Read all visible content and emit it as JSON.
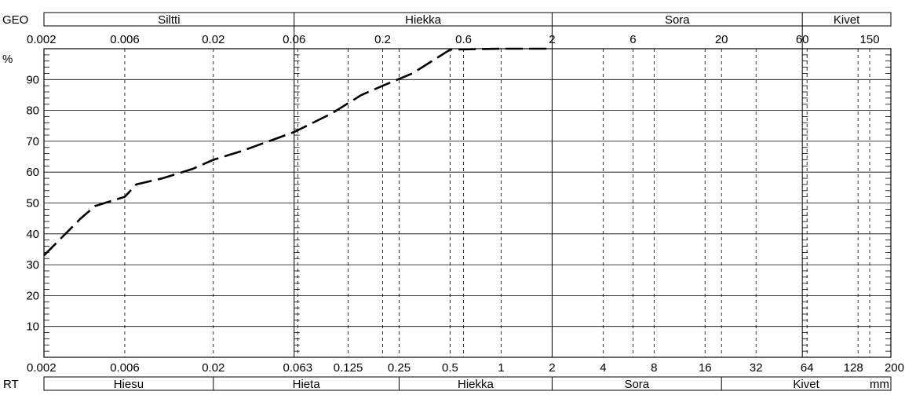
{
  "chart_data": {
    "type": "line",
    "x_scale": "log",
    "xlim": [
      0.002,
      200
    ],
    "ylim": [
      0,
      100
    ],
    "grid": true,
    "y_unit": "%",
    "x_unit": "mm",
    "yticks": [
      "10",
      "20",
      "30",
      "40",
      "50",
      "60",
      "70",
      "80",
      "90"
    ],
    "top_ticks": [
      {
        "v": 0.002,
        "label": "0.002"
      },
      {
        "v": 0.006,
        "label": "0.006"
      },
      {
        "v": 0.02,
        "label": "0.02"
      },
      {
        "v": 0.06,
        "label": "0.06"
      },
      {
        "v": 0.2,
        "label": "0.2"
      },
      {
        "v": 0.6,
        "label": "0.6"
      },
      {
        "v": 2,
        "label": "2"
      },
      {
        "v": 6,
        "label": "6"
      },
      {
        "v": 20,
        "label": "20"
      },
      {
        "v": 60,
        "label": "60"
      },
      {
        "v": 150,
        "label": "150"
      }
    ],
    "bottom_ticks": [
      {
        "v": 0.002,
        "label": "0.002"
      },
      {
        "v": 0.006,
        "label": "0.006"
      },
      {
        "v": 0.02,
        "label": "0.02"
      },
      {
        "v": 0.063,
        "label": "0.063"
      },
      {
        "v": 0.125,
        "label": "0.125"
      },
      {
        "v": 0.25,
        "label": "0.25"
      },
      {
        "v": 0.5,
        "label": "0.5"
      },
      {
        "v": 1,
        "label": "1"
      },
      {
        "v": 2,
        "label": "2"
      },
      {
        "v": 4,
        "label": "4"
      },
      {
        "v": 8,
        "label": "8"
      },
      {
        "v": 16,
        "label": "16"
      },
      {
        "v": 32,
        "label": "32"
      },
      {
        "v": 64,
        "label": "64"
      },
      {
        "v": 128,
        "label": "128"
      },
      {
        "v": 200,
        "label": "200"
      }
    ],
    "geo_label": "GEO",
    "geo_classes": [
      {
        "label": "Siltti",
        "from": 0.002,
        "to": 0.06
      },
      {
        "label": "Hiekka",
        "from": 0.06,
        "to": 2
      },
      {
        "label": "Sora",
        "from": 2,
        "to": 60
      },
      {
        "label": "Kivet",
        "from": 60,
        "to": 200
      }
    ],
    "rt_label": "RT",
    "rt_classes": [
      {
        "label": "Hiesu",
        "from": 0.002,
        "to": 0.02
      },
      {
        "label": "Hieta",
        "from": 0.02,
        "to": 0.25
      },
      {
        "label": "Hiekka",
        "from": 0.25,
        "to": 2
      },
      {
        "label": "Sora",
        "from": 2,
        "to": 20
      },
      {
        "label": "Kivet",
        "from": 20,
        "to": 200
      }
    ],
    "series": [
      {
        "style": "dashed",
        "color": "#000000",
        "x": [
          0.002,
          0.0033,
          0.004,
          0.006,
          0.007,
          0.01,
          0.015,
          0.02,
          0.03,
          0.06,
          0.1,
          0.15,
          0.2,
          0.3,
          0.5,
          1,
          2
        ],
        "y": [
          33,
          45,
          49,
          52,
          56,
          58,
          61,
          64,
          67,
          73,
          79,
          85,
          88,
          92,
          99.7,
          100,
          100
        ]
      }
    ]
  }
}
